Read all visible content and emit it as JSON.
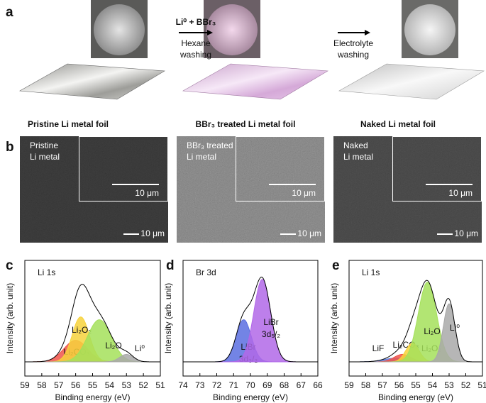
{
  "panel_labels": [
    "a",
    "b",
    "c",
    "d",
    "e"
  ],
  "panel_a": {
    "step_1": {
      "reaction": "Li⁰ + BBr₃",
      "wash": [
        "Hexane",
        "washing"
      ]
    },
    "step_2": {
      "wash": [
        "Electrolyte",
        "washing"
      ]
    },
    "captions": [
      "Pristine Li metal foil",
      "BBr₃ treated Li metal foil",
      "Naked Li metal foil"
    ]
  },
  "panel_b": {
    "images": [
      {
        "label": [
          "Pristine",
          "Li metal"
        ],
        "inset_scale": "10 μm",
        "scale": "10 μm"
      },
      {
        "label": [
          "BBr₃ treated",
          "Li metal"
        ],
        "inset_scale": "10 μm",
        "scale": "10 μm"
      },
      {
        "label": [
          "Naked",
          "Li metal"
        ],
        "inset_scale": "10 μm",
        "scale": "10 μm"
      }
    ]
  },
  "xps": [
    {
      "type": "line",
      "title": "Li 1s",
      "xlabel": "Binding energy (eV)",
      "ylabel": "Intensity (arb. unit)",
      "xlim": [
        59,
        51
      ],
      "ylim": [
        0,
        1
      ],
      "xticks": [
        59,
        58,
        57,
        56,
        55,
        54,
        53,
        52,
        51
      ],
      "components": [
        {
          "name": [
            "Li₂CO₃"
          ],
          "color": "#f0544a",
          "center": 56.0,
          "height": 0.23,
          "width": 0.7
        },
        {
          "name": [
            "Li₂O₂"
          ],
          "color": "#f7d23c",
          "center": 55.7,
          "height": 0.48,
          "width": 0.5
        },
        {
          "name": [
            "Li₂O"
          ],
          "color": "#a4e05a",
          "center": 54.6,
          "height": 0.45,
          "width": 0.7
        },
        {
          "name": [
            "Li⁰"
          ],
          "color": "#a9a9a9",
          "center": 53.0,
          "height": 0.08,
          "width": 0.4
        }
      ]
    },
    {
      "type": "line",
      "title": "Br 3d",
      "xlabel": "Binding energy (eV)",
      "ylabel": "Intensity (arb. unit)",
      "xlim": [
        74,
        66
      ],
      "ylim": [
        0,
        1
      ],
      "xticks": [
        74,
        73,
        72,
        71,
        70,
        69,
        68,
        67,
        66
      ],
      "components": [
        {
          "name": [
            "LiBr",
            "3d₃/₂"
          ],
          "color": "#5a6ee0",
          "center": 70.4,
          "height": 0.45,
          "width": 0.45
        },
        {
          "name": [
            "LiBr",
            "3d₅/₂"
          ],
          "color": "#b168e8",
          "center": 69.3,
          "height": 0.88,
          "width": 0.5
        }
      ]
    },
    {
      "type": "line",
      "title": "Li 1s",
      "xlabel": "Binding energy (eV)",
      "ylabel": "Intensity (arb. unit)",
      "xlim": [
        59,
        51
      ],
      "ylim": [
        0,
        1
      ],
      "xticks": [
        59,
        58,
        57,
        56,
        55,
        54,
        53,
        52,
        51
      ],
      "components": [
        {
          "name": [
            "LiF"
          ],
          "color": "#5a7ee0",
          "center": 56.2,
          "height": 0.04,
          "width": 0.7
        },
        {
          "name": [
            "Li₂CO₃"
          ],
          "color": "#f0544a",
          "center": 55.8,
          "height": 0.08,
          "width": 0.5
        },
        {
          "name": [
            "Li₂O₂"
          ],
          "color": "#f7d23c",
          "center": 55.2,
          "height": 0.2,
          "width": 0.4
        },
        {
          "name": [
            "Li₂O"
          ],
          "color": "#a4e05a",
          "center": 54.3,
          "height": 0.85,
          "width": 0.55
        },
        {
          "name": [
            "Li⁰"
          ],
          "color": "#a9a9a9",
          "center": 53.0,
          "height": 0.62,
          "width": 0.35
        }
      ]
    }
  ]
}
